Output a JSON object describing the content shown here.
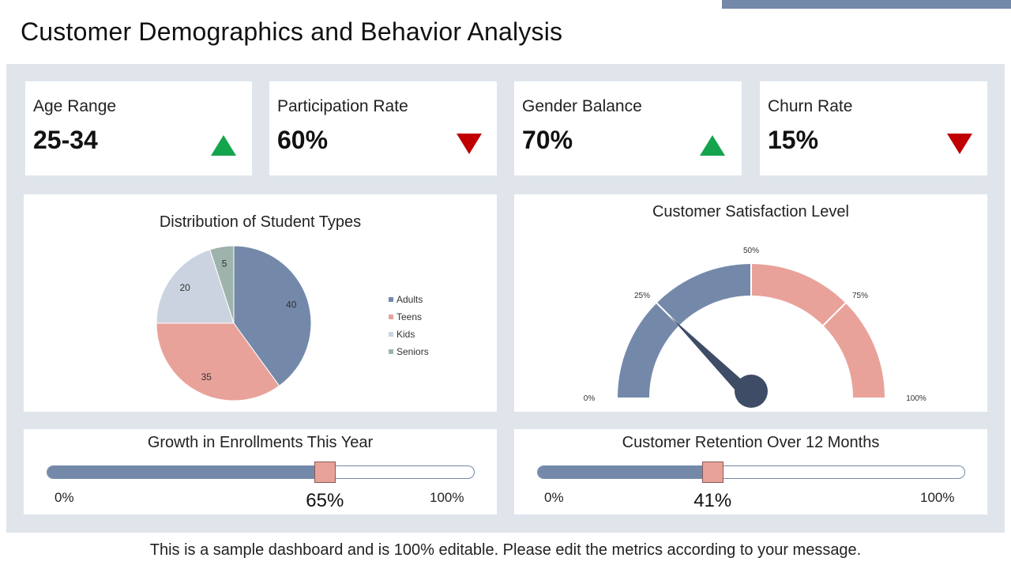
{
  "title": "Customer Demographics and Behavior Analysis",
  "colors": {
    "accent": "#7489aa",
    "up": "#14a44d",
    "down": "#c00000",
    "salmon": "#e8a29a",
    "light_gray_blue": "#ccd3e0",
    "sage": "#9db3ac",
    "needle": "#3e4c66"
  },
  "kpis": [
    {
      "label": "Age Range",
      "value": "25-34",
      "trend": "up",
      "icon": "triangle-up-icon"
    },
    {
      "label": "Participation Rate",
      "value": "60%",
      "trend": "down",
      "icon": "triangle-down-icon"
    },
    {
      "label": "Gender Balance",
      "value": "70%",
      "trend": "up",
      "icon": "triangle-up-icon"
    },
    {
      "label": "Churn Rate",
      "value": "15%",
      "trend": "down",
      "icon": "triangle-down-icon"
    }
  ],
  "chart_data": [
    {
      "type": "pie",
      "title": "Distribution of Student Types",
      "categories": [
        "Adults",
        "Teens",
        "Kids",
        "Seniors"
      ],
      "values": [
        40,
        35,
        20,
        5
      ],
      "colors": [
        "#7489aa",
        "#e8a29a",
        "#ccd3e0",
        "#9db3ac"
      ],
      "legend": "right"
    },
    {
      "type": "gauge",
      "title": "Customer Satisfaction Level",
      "tick_labels": [
        "0%",
        "25%",
        "50%",
        "75%",
        "100%"
      ],
      "range": [
        0,
        100
      ],
      "bands": [
        {
          "from": 0,
          "to": 50,
          "color": "#7489aa"
        },
        {
          "from": 50,
          "to": 100,
          "color": "#e8a29a"
        }
      ],
      "value": 25
    }
  ],
  "progress": [
    {
      "title": "Growth in Enrollments This Year",
      "value": 65,
      "value_label": "65%",
      "min_label": "0%",
      "max_label": "100%"
    },
    {
      "title": "Customer Retention Over 12 Months",
      "value": 41,
      "value_label": "41%",
      "min_label": "0%",
      "max_label": "100%"
    }
  ],
  "footer": "This is a sample dashboard and is 100% editable. Please edit the metrics according to your message."
}
